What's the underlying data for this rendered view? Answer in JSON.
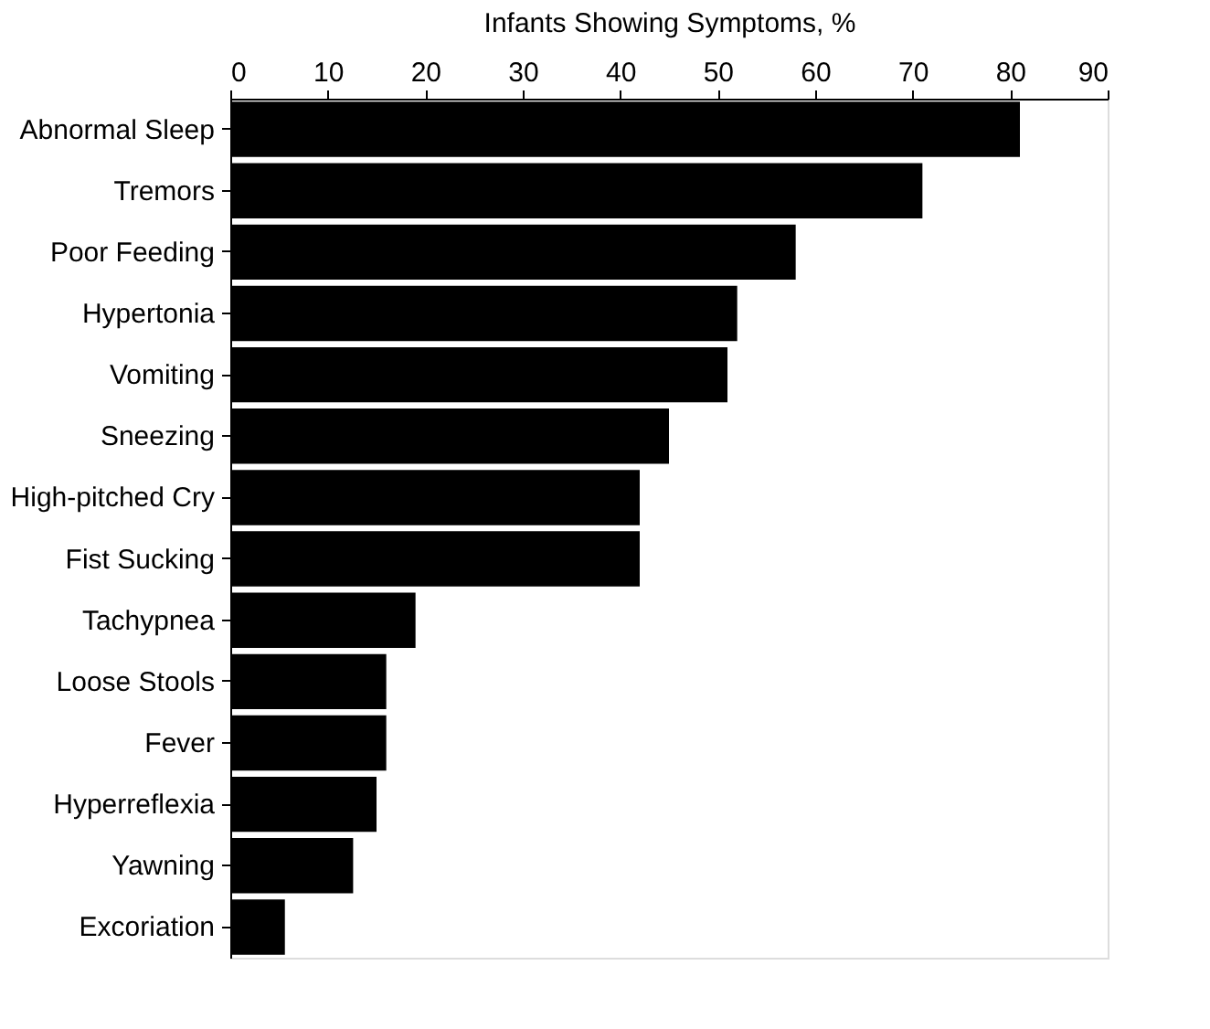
{
  "chart_data": {
    "type": "bar",
    "orientation": "horizontal",
    "xlabel": "Infants Showing Symptoms, %",
    "categories": [
      "Abnormal Sleep",
      "Tremors",
      "Poor Feeding",
      "Hypertonia",
      "Vomiting",
      "Sneezing",
      "High-pitched Cry",
      "Fist Sucking",
      "Tachypnea",
      "Loose Stools",
      "Fever",
      "Hyperreflexia",
      "Yawning",
      "Excoriation"
    ],
    "values": [
      81,
      71,
      58,
      52,
      51,
      45,
      42,
      42,
      19,
      16,
      16,
      15,
      12.6,
      5.6
    ],
    "color": "#000000",
    "xlim": [
      0,
      90
    ],
    "xticks": [
      0,
      10,
      20,
      30,
      40,
      50,
      60,
      70,
      80,
      90
    ],
    "grid": false
  }
}
